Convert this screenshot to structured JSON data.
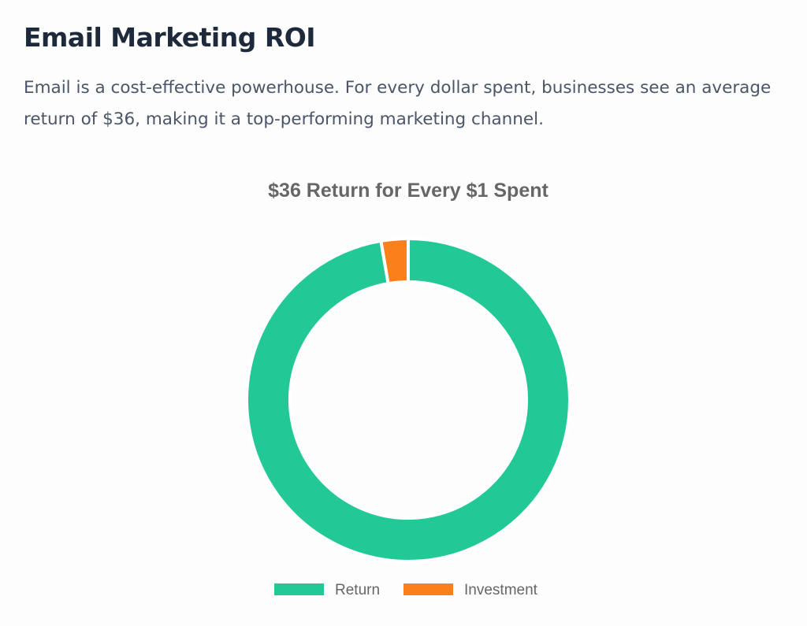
{
  "header": {
    "title": "Email Marketing ROI",
    "description": "Email is a cost-effective powerhouse. For every dollar spent, businesses see an average return of $36, making it a top-performing marketing channel."
  },
  "chart_data": {
    "type": "pie",
    "variant": "doughnut",
    "title": "$36 Return for Every $1 Spent",
    "categories": [
      "Return",
      "Investment"
    ],
    "values": [
      36,
      1
    ],
    "colors": [
      "#22c997",
      "#fb7f1a"
    ],
    "legend_position": "bottom",
    "start_angle_deg": 0,
    "direction": "clockwise"
  }
}
